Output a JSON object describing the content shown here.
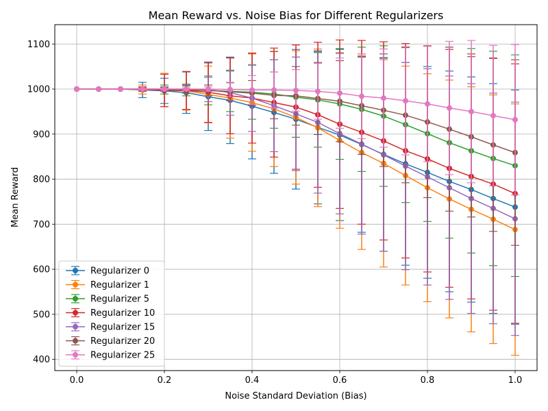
{
  "chart_data": {
    "type": "line",
    "title": "Mean Reward vs. Noise Bias for Different Regularizers",
    "xlabel": "Noise Standard Deviation (Bias)",
    "ylabel": "Mean Reward",
    "xlim": [
      -0.05,
      1.05
    ],
    "ylim": [
      375,
      1143
    ],
    "xticks": [
      "0.0",
      "0.2",
      "0.4",
      "0.6",
      "0.8",
      "1.0"
    ],
    "yticks": [
      "400",
      "500",
      "600",
      "700",
      "800",
      "900",
      "1000",
      "1100"
    ],
    "grid": true,
    "legend_position": "lower-left",
    "x": [
      0.0,
      0.05,
      0.1,
      0.15,
      0.2,
      0.25,
      0.3,
      0.35,
      0.4,
      0.45,
      0.5,
      0.55,
      0.6,
      0.65,
      0.7,
      0.75,
      0.8,
      0.85,
      0.9,
      0.95,
      1.0
    ],
    "series": [
      {
        "name": "Regularizer 0",
        "color": "#1f77b4",
        "values": [
          1000,
          1000,
          1000,
          998,
          996,
          992,
          983,
          975,
          962,
          948,
          933,
          915,
          898,
          877,
          855,
          834,
          815,
          795,
          777,
          757,
          738
        ],
        "errors": [
          0,
          0,
          0,
          17,
          28,
          46,
          75,
          96,
          117,
          135,
          155,
          170,
          190,
          195,
          215,
          225,
          235,
          245,
          250,
          255,
          260
        ]
      },
      {
        "name": "Regularizer 1",
        "color": "#ff7f0e",
        "values": [
          1000,
          1000,
          1000,
          999,
          998,
          996,
          988,
          980,
          970,
          956,
          937,
          914,
          886,
          859,
          835,
          808,
          781,
          756,
          733,
          711,
          688
        ],
        "errors": [
          0,
          0,
          0,
          10,
          37,
          43,
          63,
          89,
          108,
          128,
          148,
          175,
          195,
          215,
          230,
          243,
          253,
          264,
          272,
          276,
          279
        ]
      },
      {
        "name": "Regularizer 5",
        "color": "#2ca02c",
        "values": [
          1000,
          1000,
          1000,
          1000,
          999,
          998,
          997,
          995,
          993,
          989,
          982,
          976,
          967,
          955,
          940,
          921,
          901,
          881,
          863,
          846,
          830
        ],
        "errors": [
          0,
          0,
          0,
          2,
          10,
          13,
          32,
          45,
          60,
          76,
          89,
          105,
          123,
          138,
          156,
          173,
          195,
          212,
          227,
          238,
          246
        ]
      },
      {
        "name": "Regularizer 10",
        "color": "#d62728",
        "values": [
          1000,
          1000,
          1000,
          1000,
          997,
          997,
          993,
          985,
          980,
          970,
          960,
          943,
          922,
          904,
          885,
          863,
          845,
          824,
          806,
          789,
          768
        ],
        "errors": [
          0,
          0,
          0,
          5,
          36,
          42,
          67,
          84,
          100,
          121,
          138,
          161,
          187,
          204,
          220,
          238,
          251,
          264,
          272,
          280,
          288
        ]
      },
      {
        "name": "Regularizer 15",
        "color": "#9467bd",
        "values": [
          1000,
          1000,
          1000,
          1000,
          1000,
          1000,
          999,
          992,
          980,
          963,
          945,
          926,
          901,
          878,
          854,
          829,
          805,
          781,
          757,
          735,
          712
        ],
        "errors": [
          0,
          0,
          0,
          3,
          5,
          9,
          27,
          50,
          74,
          102,
          126,
          157,
          178,
          200,
          214,
          230,
          240,
          248,
          255,
          256,
          259
        ]
      },
      {
        "name": "Regularizer 20",
        "color": "#8c564b",
        "values": [
          1000,
          1000,
          1000,
          1000,
          1000,
          999,
          997,
          994,
          991,
          986,
          985,
          979,
          973,
          963,
          953,
          942,
          927,
          911,
          894,
          876,
          859
        ],
        "errors": [
          0,
          0,
          0,
          3,
          4,
          8,
          12,
          20,
          28,
          52,
          65,
          80,
          90,
          108,
          125,
          150,
          168,
          182,
          178,
          192,
          206
        ]
      },
      {
        "name": "Regularizer 25",
        "color": "#e377c2",
        "values": [
          1000,
          1000,
          1000,
          1000,
          1000,
          1000,
          1000,
          999,
          998,
          998,
          997,
          995,
          991,
          984,
          980,
          974,
          967,
          958,
          950,
          941,
          932
        ],
        "errors": [
          0,
          0,
          0,
          2,
          2,
          3,
          5,
          16,
          32,
          40,
          46,
          62,
          78,
          94,
          109,
          120,
          128,
          148,
          158,
          156,
          167
        ]
      }
    ]
  }
}
